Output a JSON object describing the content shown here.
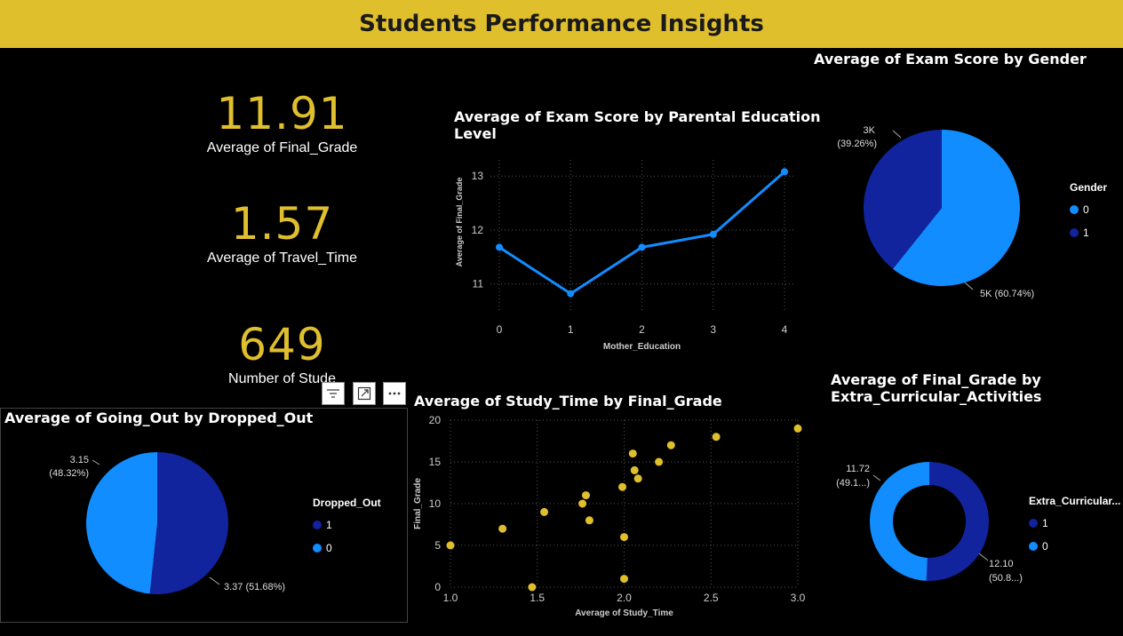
{
  "header": {
    "title": "Students Performance Insights"
  },
  "kpis": {
    "final_grade": {
      "value": "11.91",
      "label": "Average of Final_Grade"
    },
    "travel_time": {
      "value": "1.57",
      "label": "Average of Travel_Time"
    },
    "students": {
      "value": "649",
      "label": "Number of Stude"
    }
  },
  "colors": {
    "accent": "#e0bf2d",
    "light_blue": "#118dff",
    "dark_blue": "#12239e"
  },
  "chart_data": [
    {
      "id": "line",
      "type": "line",
      "title": "Average of Exam Score by Parental Education Level",
      "title_lines": [
        "Average of Exam Score by Parental Education",
        "Level"
      ],
      "xlabel": "Mother_Education",
      "ylabel": "Average of Final_Grade",
      "x": [
        0,
        1,
        2,
        3,
        4
      ],
      "y": [
        11.68,
        10.82,
        11.68,
        11.92,
        13.08
      ],
      "ylim": [
        10.5,
        13.3
      ],
      "yticks": [
        11,
        12,
        13
      ],
      "grid": true
    },
    {
      "id": "gender_pie",
      "type": "pie",
      "title": "Average of Exam Score by Gender",
      "legend_title": "Gender",
      "slices": [
        {
          "name": "0",
          "label": "5K (60.74%)",
          "percent": 60.74
        },
        {
          "name": "1",
          "label_lines": [
            "3K",
            "(39.26%)"
          ],
          "percent": 39.26
        }
      ]
    },
    {
      "id": "dropped_pie",
      "type": "pie",
      "title": "Average of Going_Out by Dropped_Out",
      "legend_title": "Dropped_Out",
      "slices": [
        {
          "name": "1",
          "label": "3.37 (51.68%)",
          "value": 3.37,
          "percent": 51.68
        },
        {
          "name": "0",
          "label_lines": [
            "3.15",
            "(48.32%)"
          ],
          "value": 3.15,
          "percent": 48.32
        }
      ]
    },
    {
      "id": "scatter",
      "type": "scatter",
      "title": "Average of Study_Time by Final_Grade",
      "xlabel": "Average of Study_Time",
      "ylabel": "Final_Grade",
      "xlim": [
        1.0,
        3.0
      ],
      "ylim": [
        0,
        20
      ],
      "xticks": [
        "1.0",
        "1.5",
        "2.0",
        "2.5",
        "3.0"
      ],
      "yticks": [
        "0",
        "5",
        "10",
        "15",
        "20"
      ],
      "points": [
        [
          1.0,
          5
        ],
        [
          1.3,
          7
        ],
        [
          1.47,
          0
        ],
        [
          1.54,
          9
        ],
        [
          1.76,
          10
        ],
        [
          1.78,
          11
        ],
        [
          1.8,
          8
        ],
        [
          1.99,
          12
        ],
        [
          2.0,
          6
        ],
        [
          2.0,
          1
        ],
        [
          2.05,
          16
        ],
        [
          2.06,
          14
        ],
        [
          2.08,
          13
        ],
        [
          2.2,
          15
        ],
        [
          2.27,
          17
        ],
        [
          2.53,
          18
        ],
        [
          3.0,
          19
        ]
      ],
      "grid": true
    },
    {
      "id": "donut",
      "type": "pie",
      "title": "Average of Final_Grade by Extra_Curricular_Activities",
      "title_lines": [
        "Average of Final_Grade by",
        "Extra_Curricular_Activities"
      ],
      "legend_title": "Extra_Curricular...",
      "slices": [
        {
          "name": "1",
          "label_lines": [
            "12.10",
            "(50.8...)"
          ],
          "value": 12.1
        },
        {
          "name": "0",
          "label_lines": [
            "11.72",
            "(49.1...)"
          ],
          "value": 11.72
        }
      ]
    }
  ]
}
